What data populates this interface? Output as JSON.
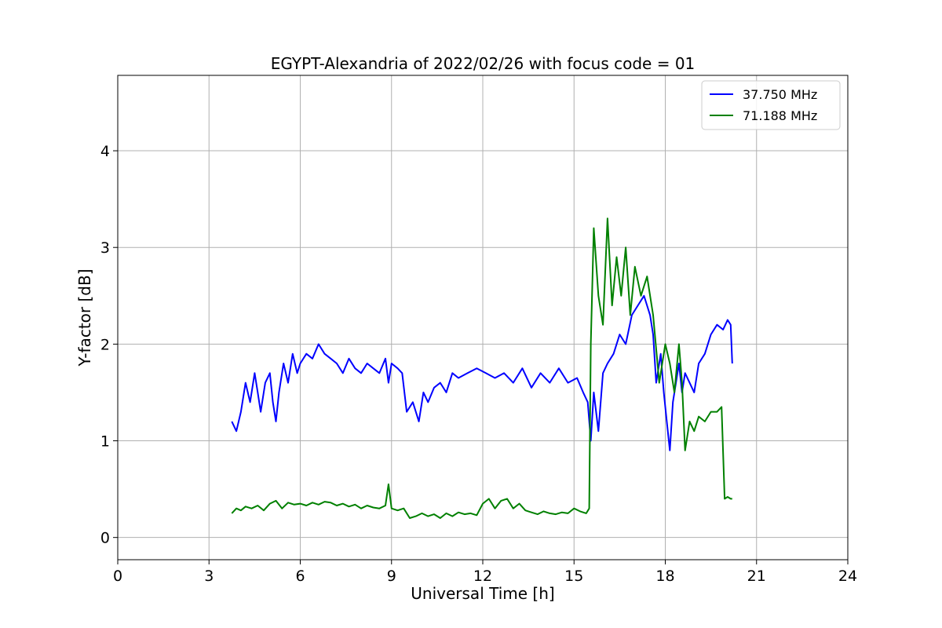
{
  "chart_data": {
    "type": "line",
    "title": "EGYPT-Alexandria of 2022/02/26 with focus code = 01",
    "xlabel": "Universal Time [h]",
    "ylabel": "Y-factor [dB]",
    "xlim": [
      0,
      24
    ],
    "ylim": [
      -0.23,
      4.78
    ],
    "xticks": [
      0,
      3,
      6,
      9,
      12,
      15,
      18,
      21,
      24
    ],
    "xtick_labels": [
      "0",
      "3",
      "6",
      "9",
      "12",
      "15",
      "18",
      "21",
      "24"
    ],
    "yticks": [
      0,
      1,
      2,
      3,
      4
    ],
    "ytick_labels": [
      "0",
      "1",
      "2",
      "3",
      "4"
    ],
    "grid": true,
    "legend_position": "top-right",
    "series": [
      {
        "name": "37.750 MHz",
        "color": "#0000ff",
        "x": [
          3.75,
          3.9,
          4.05,
          4.2,
          4.35,
          4.5,
          4.6,
          4.7,
          4.85,
          5.0,
          5.1,
          5.2,
          5.3,
          5.45,
          5.6,
          5.75,
          5.9,
          6.0,
          6.2,
          6.4,
          6.6,
          6.8,
          7.0,
          7.2,
          7.4,
          7.6,
          7.8,
          8.0,
          8.2,
          8.4,
          8.6,
          8.8,
          8.9,
          9.0,
          9.2,
          9.35,
          9.5,
          9.7,
          9.9,
          10.05,
          10.2,
          10.4,
          10.6,
          10.8,
          11.0,
          11.2,
          11.5,
          11.8,
          12.1,
          12.4,
          12.7,
          13.0,
          13.3,
          13.6,
          13.9,
          14.2,
          14.5,
          14.8,
          15.1,
          15.3,
          15.45,
          15.55,
          15.65,
          15.8,
          15.95,
          16.1,
          16.3,
          16.5,
          16.7,
          16.9,
          17.1,
          17.3,
          17.5,
          17.6,
          17.7,
          17.85,
          17.95,
          18.05,
          18.15,
          18.25,
          18.35,
          18.45,
          18.55,
          18.65,
          18.8,
          18.95,
          19.1,
          19.3,
          19.5,
          19.7,
          19.9,
          20.05,
          20.15,
          20.2
        ],
        "y": [
          1.2,
          1.1,
          1.3,
          1.6,
          1.4,
          1.7,
          1.5,
          1.3,
          1.6,
          1.7,
          1.4,
          1.2,
          1.5,
          1.8,
          1.6,
          1.9,
          1.7,
          1.8,
          1.9,
          1.85,
          2.0,
          1.9,
          1.85,
          1.8,
          1.7,
          1.85,
          1.75,
          1.7,
          1.8,
          1.75,
          1.7,
          1.85,
          1.6,
          1.8,
          1.75,
          1.7,
          1.3,
          1.4,
          1.2,
          1.5,
          1.4,
          1.55,
          1.6,
          1.5,
          1.7,
          1.65,
          1.7,
          1.75,
          1.7,
          1.65,
          1.7,
          1.6,
          1.75,
          1.55,
          1.7,
          1.6,
          1.75,
          1.6,
          1.65,
          1.5,
          1.4,
          1.0,
          1.5,
          1.1,
          1.7,
          1.8,
          1.9,
          2.1,
          2.0,
          2.3,
          2.4,
          2.5,
          2.3,
          2.1,
          1.6,
          1.9,
          1.5,
          1.2,
          0.9,
          1.4,
          1.6,
          1.8,
          1.5,
          1.7,
          1.6,
          1.5,
          1.8,
          1.9,
          2.1,
          2.2,
          2.15,
          2.25,
          2.2,
          1.8
        ]
      },
      {
        "name": "71.188 MHz",
        "color": "#008000",
        "x": [
          3.75,
          3.9,
          4.05,
          4.2,
          4.4,
          4.6,
          4.8,
          5.0,
          5.2,
          5.4,
          5.6,
          5.8,
          6.0,
          6.2,
          6.4,
          6.6,
          6.8,
          7.0,
          7.2,
          7.4,
          7.6,
          7.8,
          8.0,
          8.2,
          8.4,
          8.6,
          8.8,
          8.9,
          9.0,
          9.2,
          9.4,
          9.6,
          9.8,
          10.0,
          10.2,
          10.4,
          10.6,
          10.8,
          11.0,
          11.2,
          11.4,
          11.6,
          11.8,
          12.0,
          12.2,
          12.4,
          12.6,
          12.8,
          13.0,
          13.2,
          13.4,
          13.6,
          13.8,
          14.0,
          14.2,
          14.4,
          14.6,
          14.8,
          15.0,
          15.2,
          15.4,
          15.5,
          15.55,
          15.65,
          15.8,
          15.95,
          16.1,
          16.25,
          16.4,
          16.55,
          16.7,
          16.85,
          17.0,
          17.2,
          17.4,
          17.6,
          17.8,
          18.0,
          18.15,
          18.3,
          18.45,
          18.55,
          18.65,
          18.8,
          18.95,
          19.1,
          19.3,
          19.5,
          19.7,
          19.85,
          19.95,
          20.05,
          20.15,
          20.2
        ],
        "y": [
          0.25,
          0.3,
          0.28,
          0.32,
          0.3,
          0.33,
          0.28,
          0.35,
          0.38,
          0.3,
          0.36,
          0.34,
          0.35,
          0.33,
          0.36,
          0.34,
          0.37,
          0.36,
          0.33,
          0.35,
          0.32,
          0.34,
          0.3,
          0.33,
          0.31,
          0.3,
          0.33,
          0.55,
          0.3,
          0.28,
          0.3,
          0.2,
          0.22,
          0.25,
          0.22,
          0.24,
          0.2,
          0.25,
          0.22,
          0.26,
          0.24,
          0.25,
          0.23,
          0.35,
          0.4,
          0.3,
          0.38,
          0.4,
          0.3,
          0.35,
          0.28,
          0.26,
          0.24,
          0.27,
          0.25,
          0.24,
          0.26,
          0.25,
          0.3,
          0.27,
          0.25,
          0.3,
          2.0,
          3.2,
          2.5,
          2.2,
          3.3,
          2.4,
          2.9,
          2.5,
          3.0,
          2.3,
          2.8,
          2.5,
          2.7,
          2.3,
          1.6,
          2.0,
          1.8,
          1.5,
          2.0,
          1.6,
          0.9,
          1.2,
          1.1,
          1.25,
          1.2,
          1.3,
          1.3,
          1.35,
          0.4,
          0.42,
          0.4,
          0.4
        ]
      }
    ]
  }
}
